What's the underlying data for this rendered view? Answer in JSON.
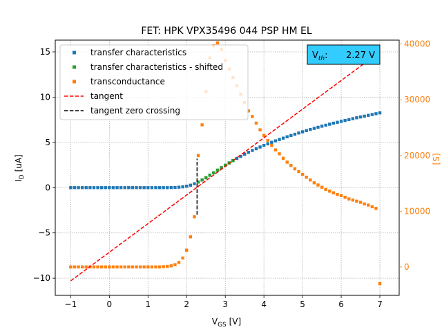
{
  "chart_data": {
    "type": "scatter",
    "title": "FET: HPK VPX35496 044 PSP HM EL",
    "xlabel_main": "V",
    "xlabel_sub": "GS",
    "xlabel_unit": " [V]",
    "ylabel_main": "I",
    "ylabel_sub": "D",
    "ylabel_unit": " [uA]",
    "y2label": "[S]",
    "xlim": [
      -1.4,
      7.5
    ],
    "ylim": [
      -11.9,
      16.3
    ],
    "y2lim": [
      -5100,
      40700
    ],
    "xticks": [
      -1,
      0,
      1,
      2,
      3,
      4,
      5,
      6,
      7
    ],
    "yticks": [
      -10,
      -5,
      0,
      5,
      10,
      15
    ],
    "y2ticks": [
      0,
      10000,
      20000,
      30000,
      40000
    ],
    "grid": true,
    "legend_position": "upper-left",
    "series": [
      {
        "name": "transfer characteristics",
        "color": "#1f77b4",
        "marker": "square",
        "x": [
          -1.0,
          -0.9,
          -0.8,
          -0.7,
          -0.6,
          -0.5,
          -0.4,
          -0.3,
          -0.2,
          -0.1,
          0.0,
          0.1,
          0.2,
          0.3,
          0.4,
          0.5,
          0.6,
          0.7,
          0.8,
          0.9,
          1.0,
          1.1,
          1.2,
          1.3,
          1.4,
          1.5,
          1.6,
          1.7,
          1.8,
          1.9,
          2.0,
          2.1,
          2.2,
          2.3,
          2.4,
          2.5,
          2.6,
          2.7,
          2.8,
          2.9,
          3.0,
          3.1,
          3.2,
          3.3,
          3.4,
          3.5,
          3.6,
          3.7,
          3.8,
          3.9,
          4.0,
          4.1,
          4.2,
          4.3,
          4.4,
          4.5,
          4.6,
          4.7,
          4.8,
          4.9,
          5.0,
          5.1,
          5.2,
          5.3,
          5.4,
          5.5,
          5.6,
          5.7,
          5.8,
          5.9,
          6.0,
          6.1,
          6.2,
          6.3,
          6.4,
          6.5,
          6.6,
          6.7,
          6.8,
          6.9,
          7.0
        ],
        "y": [
          0,
          0,
          0,
          0,
          0,
          0,
          0,
          0,
          0,
          0,
          0,
          0,
          0,
          0,
          0,
          0,
          0,
          0,
          0,
          0,
          0,
          0,
          0,
          0,
          0,
          0,
          0.01,
          0.02,
          0.05,
          0.09,
          0.16,
          0.27,
          0.43,
          0.62,
          0.85,
          1.1,
          1.37,
          1.65,
          1.93,
          2.2,
          2.47,
          2.73,
          2.99,
          3.23,
          3.46,
          3.69,
          3.9,
          4.11,
          4.3,
          4.49,
          4.67,
          4.84,
          5.01,
          5.17,
          5.32,
          5.47,
          5.62,
          5.76,
          5.9,
          6.04,
          6.17,
          6.3,
          6.43,
          6.55,
          6.67,
          6.79,
          6.9,
          7.01,
          7.12,
          7.22,
          7.32,
          7.42,
          7.52,
          7.62,
          7.72,
          7.81,
          7.9,
          7.99,
          8.08,
          8.17,
          8.26
        ]
      },
      {
        "name": "transfer characteristics - shifted",
        "color": "#2ca02c",
        "marker": "square",
        "x": [
          2.3,
          2.4,
          2.5,
          2.6,
          2.7,
          2.8,
          2.9,
          3.0,
          3.1,
          3.2
        ],
        "y": [
          0.62,
          0.85,
          1.1,
          1.37,
          1.65,
          1.93,
          2.2,
          2.47,
          2.73,
          2.99
        ]
      },
      {
        "name": "transconductance",
        "color": "#ff7f0e",
        "marker": "square",
        "axis": "right",
        "x": [
          -1.0,
          -0.9,
          -0.8,
          -0.7,
          -0.6,
          -0.5,
          -0.4,
          -0.3,
          -0.2,
          -0.1,
          0.0,
          0.1,
          0.2,
          0.3,
          0.4,
          0.5,
          0.6,
          0.7,
          0.8,
          0.9,
          1.0,
          1.1,
          1.2,
          1.3,
          1.4,
          1.5,
          1.6,
          1.7,
          1.8,
          1.9,
          2.0,
          2.1,
          2.2,
          2.3,
          2.4,
          2.5,
          2.6,
          2.7,
          2.8,
          2.9,
          3.0,
          3.1,
          3.2,
          3.3,
          3.4,
          3.5,
          3.6,
          3.7,
          3.8,
          3.9,
          4.0,
          4.1,
          4.2,
          4.3,
          4.4,
          4.5,
          4.6,
          4.7,
          4.8,
          4.9,
          5.0,
          5.1,
          5.2,
          5.3,
          5.4,
          5.5,
          5.6,
          5.7,
          5.8,
          5.9,
          6.0,
          6.1,
          6.2,
          6.3,
          6.4,
          6.5,
          6.6,
          6.7,
          6.8,
          6.9,
          7.0
        ],
        "y": [
          0,
          0,
          0,
          0,
          0,
          0,
          0,
          0,
          0,
          0,
          0,
          0,
          0,
          0,
          0,
          0,
          0,
          0,
          0,
          0,
          0,
          0,
          0,
          0,
          50,
          100,
          200,
          400,
          800,
          1600,
          3000,
          5400,
          9000,
          20000,
          25500,
          31500,
          37500,
          39700,
          40200,
          39000,
          37000,
          35500,
          34000,
          32500,
          31000,
          29500,
          28000,
          27000,
          25800,
          24600,
          23600,
          22700,
          21800,
          21000,
          20300,
          19500,
          18800,
          18200,
          17600,
          17100,
          16600,
          16100,
          15600,
          15100,
          14700,
          14300,
          13900,
          13600,
          13300,
          13000,
          12800,
          12500,
          12200,
          12000,
          11800,
          11600,
          11300,
          11100,
          10800,
          10500,
          -3000
        ]
      },
      {
        "name": "tangent",
        "color": "#ff0000",
        "style": "dashed",
        "x": [
          -1.0,
          7.0
        ],
        "y": [
          -10.3,
          15.0
        ]
      },
      {
        "name": "tangent zero crossing",
        "color": "#000000",
        "style": "dashed",
        "x": [
          2.27,
          2.27
        ],
        "y": [
          -3.0,
          3.2
        ]
      }
    ],
    "annotation": {
      "label_main": "V",
      "label_sub": "th",
      "label_sep": ":",
      "value": "2.27 V",
      "background": "#33ccff",
      "position": "top-right"
    }
  }
}
